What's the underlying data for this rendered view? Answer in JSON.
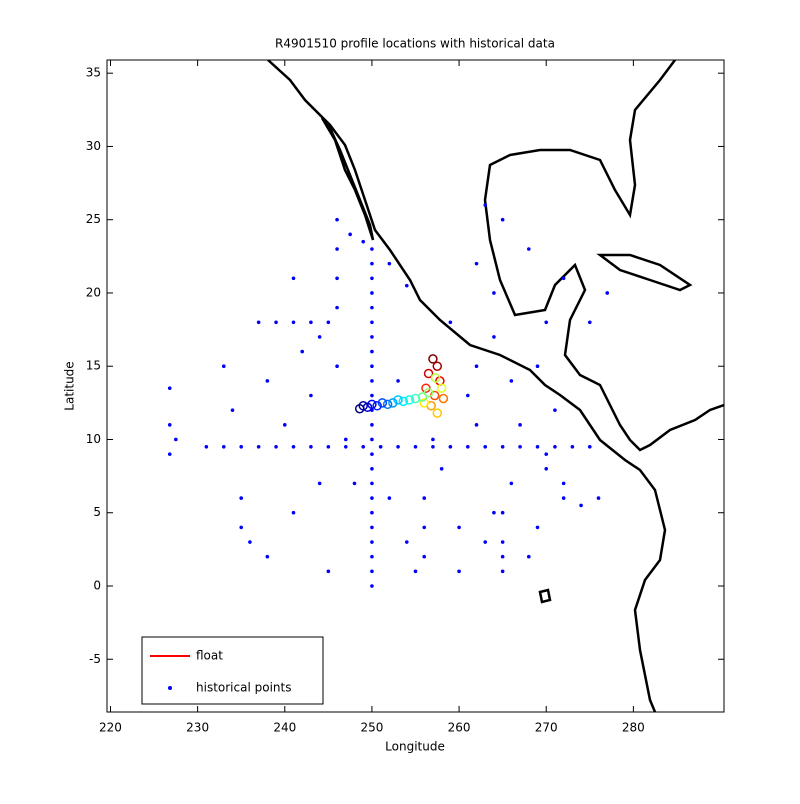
{
  "chart_data": {
    "type": "scatter",
    "title": "R4901510 profile locations with historical data",
    "x_label": "Longitude",
    "y_label": "Latitude",
    "xlim": [
      219.6,
      290.4
    ],
    "ylim": [
      -8.6,
      35.9
    ],
    "xticks": [
      220,
      230,
      240,
      250,
      260,
      270,
      280
    ],
    "yticks": [
      -5,
      0,
      5,
      10,
      15,
      20,
      25,
      30,
      35
    ],
    "series": [
      {
        "name": "float",
        "color": "#ff0000",
        "x": [
          257.0,
          257.5,
          256.5,
          257.8,
          256.2,
          257.2,
          258.2,
          256.8,
          257.5,
          256.0,
          258.0,
          257.3,
          256.5,
          255.8,
          255.0,
          254.3,
          253.6,
          253.0,
          252.4,
          251.8,
          251.2,
          250.6,
          250.0,
          249.5,
          249.0,
          248.6
        ],
        "y": [
          15.5,
          15.0,
          14.5,
          14.0,
          13.5,
          13.0,
          12.8,
          12.3,
          11.8,
          12.5,
          13.5,
          14.2,
          13.2,
          12.9,
          12.8,
          12.7,
          12.6,
          12.7,
          12.5,
          12.4,
          12.5,
          12.3,
          12.4,
          12.2,
          12.3,
          12.1
        ]
      },
      {
        "name": "historical points",
        "color": "#0000ff",
        "x": [
          250,
          250,
          250,
          250,
          250,
          250,
          250,
          250,
          250,
          250,
          250,
          250,
          250,
          250,
          250,
          250,
          250,
          250,
          250,
          250,
          250,
          250,
          250,
          250,
          231,
          233,
          235,
          237,
          239,
          241,
          243,
          245,
          247,
          249,
          251,
          253,
          255,
          257,
          259,
          261,
          263,
          265,
          267,
          269,
          271,
          273,
          275,
          237,
          239,
          241,
          243,
          245,
          246,
          246,
          246,
          246,
          247.5,
          249,
          252,
          254,
          226.8,
          226.8,
          226.8,
          227.5,
          263,
          265,
          262,
          264,
          268,
          270,
          272,
          275,
          277,
          266,
          269,
          270,
          272,
          274,
          276,
          265,
          265,
          265,
          265,
          256,
          256,
          256,
          233,
          234,
          235,
          236,
          238,
          240,
          242,
          244,
          235,
          238,
          241,
          243,
          245,
          247,
          252,
          254,
          258,
          260,
          262,
          264,
          266,
          268,
          270,
          272,
          260,
          262,
          264,
          255,
          253,
          257,
          259,
          261,
          263,
          267,
          269,
          271,
          244,
          241,
          246,
          248
        ],
        "y": [
          0,
          1,
          2,
          3,
          4,
          5,
          6,
          7,
          8,
          9,
          10,
          11,
          12,
          13,
          14,
          15,
          16,
          17,
          18,
          19,
          20,
          21,
          22,
          23,
          9.5,
          9.5,
          9.5,
          9.5,
          9.5,
          9.5,
          9.5,
          9.5,
          9.5,
          9.5,
          9.5,
          9.5,
          9.5,
          9.5,
          9.5,
          9.5,
          9.5,
          9.5,
          9.5,
          9.5,
          9.5,
          9.5,
          9.5,
          18,
          18,
          18,
          18,
          18,
          19,
          21,
          23,
          25,
          24,
          23.5,
          22,
          20.5,
          13.5,
          11,
          9,
          10,
          26,
          25,
          22,
          20,
          23,
          18,
          21,
          18,
          20,
          14,
          15,
          8,
          7,
          5.5,
          6,
          1,
          2,
          3,
          5,
          2,
          4,
          6,
          15,
          12,
          6,
          3,
          14,
          11,
          16,
          7,
          4,
          2,
          5,
          13,
          1,
          10,
          6,
          3,
          8,
          4,
          11,
          5,
          7,
          2,
          9,
          6,
          1,
          15,
          17,
          1,
          14,
          10,
          18,
          13,
          3,
          11,
          4,
          12,
          17,
          21,
          15,
          7
        ]
      }
    ]
  }
}
